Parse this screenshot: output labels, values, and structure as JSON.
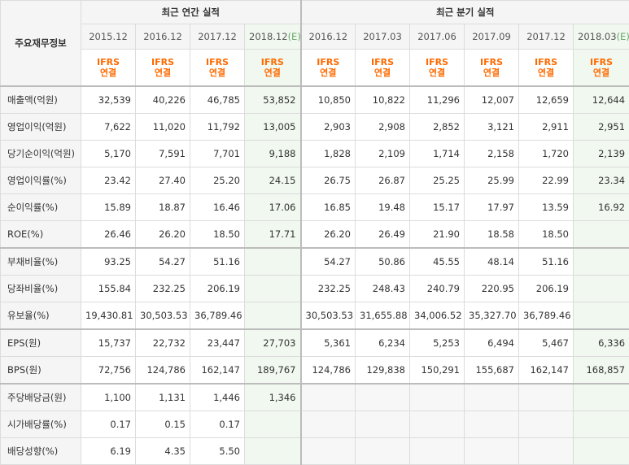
{
  "header": {
    "corner_label": "주요재무정보",
    "annual_title": "최근 연간 실적",
    "quarter_title": "최근 분기 실적",
    "annual_periods": [
      "2015.12",
      "2016.12",
      "2017.12",
      "2018.12"
    ],
    "annual_estimate_mark": "(E)",
    "quarter_periods": [
      "2016.12",
      "2017.03",
      "2017.06",
      "2017.09",
      "2017.12",
      "2018.03"
    ],
    "quarter_estimate_mark": "(E)",
    "ifrs_line1": "IFRS",
    "ifrs_line2": "연결"
  },
  "rows": [
    {
      "label": "매출액(억원)",
      "annual": [
        "32,539",
        "40,226",
        "46,785",
        "53,852"
      ],
      "quarter": [
        "10,850",
        "10,822",
        "11,296",
        "12,007",
        "12,659",
        "12,644"
      ]
    },
    {
      "label": "영업이익(억원)",
      "annual": [
        "7,622",
        "11,020",
        "11,792",
        "13,005"
      ],
      "quarter": [
        "2,903",
        "2,908",
        "2,852",
        "3,121",
        "2,911",
        "2,951"
      ]
    },
    {
      "label": "당기순이익(억원)",
      "annual": [
        "5,170",
        "7,591",
        "7,701",
        "9,188"
      ],
      "quarter": [
        "1,828",
        "2,109",
        "1,714",
        "2,158",
        "1,720",
        "2,139"
      ]
    },
    {
      "label": "영업이익률(%)",
      "annual": [
        "23.42",
        "27.40",
        "25.20",
        "24.15"
      ],
      "quarter": [
        "26.75",
        "26.87",
        "25.25",
        "25.99",
        "22.99",
        "23.34"
      ]
    },
    {
      "label": "순이익률(%)",
      "annual": [
        "15.89",
        "18.87",
        "16.46",
        "17.06"
      ],
      "quarter": [
        "16.85",
        "19.48",
        "15.17",
        "17.97",
        "13.59",
        "16.92"
      ]
    },
    {
      "label": "ROE(%)",
      "annual": [
        "26.46",
        "26.20",
        "18.50",
        "17.71"
      ],
      "quarter": [
        "26.20",
        "26.49",
        "21.90",
        "18.58",
        "18.50",
        ""
      ]
    },
    {
      "label": "부채비율(%)",
      "annual": [
        "93.25",
        "54.27",
        "51.16",
        ""
      ],
      "quarter": [
        "54.27",
        "50.86",
        "45.55",
        "48.14",
        "51.16",
        ""
      ]
    },
    {
      "label": "당좌비율(%)",
      "annual": [
        "155.84",
        "232.25",
        "206.19",
        ""
      ],
      "quarter": [
        "232.25",
        "248.43",
        "240.79",
        "220.95",
        "206.19",
        ""
      ]
    },
    {
      "label": "유보율(%)",
      "annual": [
        "19,430.81",
        "30,503.53",
        "36,789.46",
        ""
      ],
      "quarter": [
        "30,503.53",
        "31,655.88",
        "34,006.52",
        "35,327.70",
        "36,789.46",
        ""
      ]
    },
    {
      "label": "EPS(원)",
      "annual": [
        "15,737",
        "22,732",
        "23,447",
        "27,703"
      ],
      "quarter": [
        "5,361",
        "6,234",
        "5,253",
        "6,494",
        "5,467",
        "6,336"
      ]
    },
    {
      "label": "BPS(원)",
      "annual": [
        "72,756",
        "124,786",
        "162,147",
        "189,767"
      ],
      "quarter": [
        "124,786",
        "129,838",
        "150,291",
        "155,687",
        "162,147",
        "168,857"
      ]
    },
    {
      "label": "주당배당금(원)",
      "annual": [
        "1,100",
        "1,131",
        "1,446",
        "1,346"
      ],
      "quarter": [
        "",
        "",
        "",
        "",
        "",
        ""
      ]
    },
    {
      "label": "시가배당률(%)",
      "annual": [
        "0.17",
        "0.15",
        "0.17",
        ""
      ],
      "quarter": [
        "",
        "",
        "",
        "",
        "",
        ""
      ]
    },
    {
      "label": "배당성향(%)",
      "annual": [
        "6.19",
        "4.35",
        "5.50",
        ""
      ],
      "quarter": [
        "",
        "",
        "",
        "",
        "",
        ""
      ]
    }
  ]
}
